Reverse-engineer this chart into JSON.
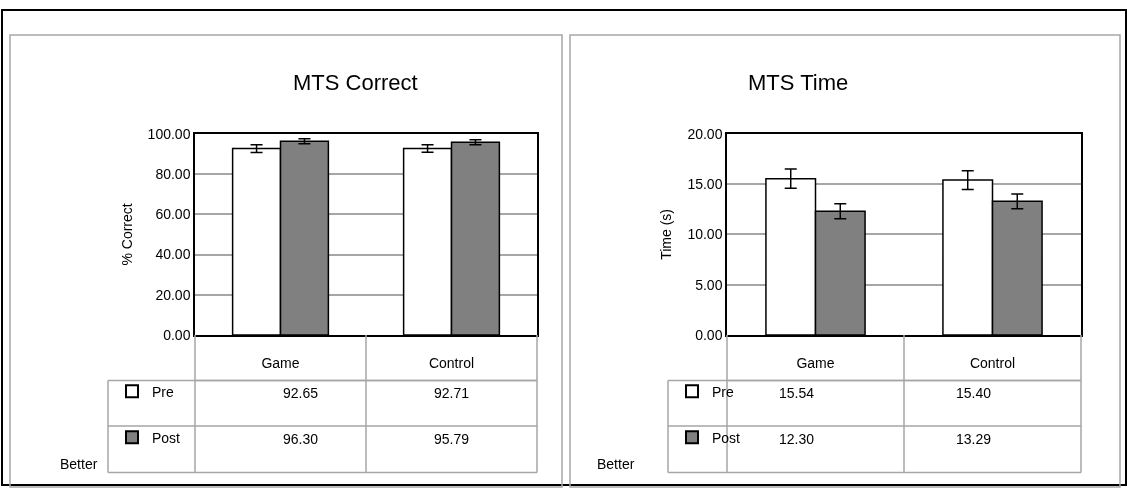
{
  "chart_data": [
    {
      "type": "bar",
      "title": "MTS Correct",
      "ylabel": "% Correct",
      "categories": [
        "Game",
        "Control"
      ],
      "series": [
        {
          "name": "Pre",
          "color": "#ffffff",
          "values": [
            92.65,
            92.71
          ],
          "errors": [
            1.9,
            1.9
          ],
          "value_labels": [
            "92.65",
            "92.71"
          ]
        },
        {
          "name": "Post",
          "color": "#808080",
          "values": [
            96.3,
            95.79
          ],
          "errors": [
            1.3,
            1.2
          ],
          "value_labels": [
            "96.30",
            "95.79"
          ]
        }
      ],
      "ylim": [
        0,
        100
      ],
      "yticks": [
        {
          "value": 0,
          "label": "0.00"
        },
        {
          "value": 20,
          "label": "20.00"
        },
        {
          "value": 40,
          "label": "40.00"
        },
        {
          "value": 60,
          "label": "60.00"
        },
        {
          "value": 80,
          "label": "80.00"
        },
        {
          "value": 100,
          "label": "100.00"
        }
      ],
      "grid": "y",
      "legend": "bottom",
      "annotations": [
        "Better"
      ]
    },
    {
      "type": "bar",
      "title": "MTS Time",
      "ylabel": "Time (s)",
      "categories": [
        "Game",
        "Control"
      ],
      "series": [
        {
          "name": "Pre",
          "color": "#ffffff",
          "values": [
            15.54,
            15.4
          ],
          "errors": [
            0.95,
            0.93
          ],
          "value_labels": [
            "15.54",
            "15.40"
          ]
        },
        {
          "name": "Post",
          "color": "#808080",
          "values": [
            12.3,
            13.29
          ],
          "errors": [
            0.75,
            0.74
          ],
          "value_labels": [
            "12.30",
            "13.29"
          ]
        }
      ],
      "ylim": [
        0,
        20
      ],
      "yticks": [
        {
          "value": 0,
          "label": "0.00"
        },
        {
          "value": 5,
          "label": "5.00"
        },
        {
          "value": 10,
          "label": "10.00"
        },
        {
          "value": 15,
          "label": "15.00"
        },
        {
          "value": 20,
          "label": "20.00"
        }
      ],
      "grid": "y",
      "legend": "bottom",
      "annotations": [
        "Better"
      ]
    }
  ]
}
